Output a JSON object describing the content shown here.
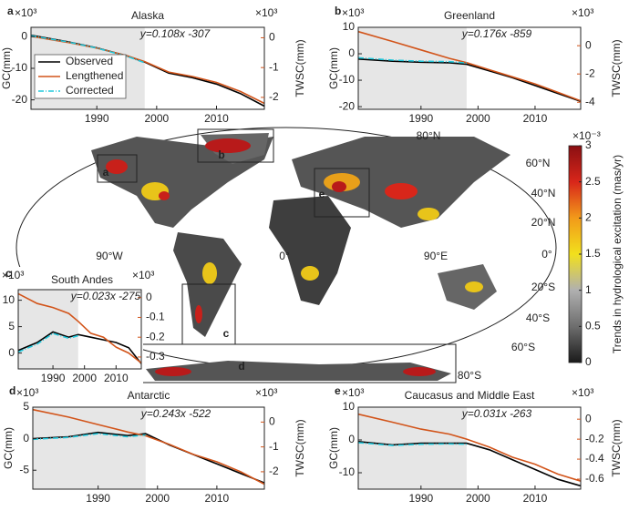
{
  "chart_data": [
    {
      "type": "line",
      "panel": "a",
      "title": "Alaska",
      "annotation": "y=0.108x -307",
      "y_label": "GC(mm)",
      "y2_label": "TWSC(mm)",
      "y_multiplier": "×10³",
      "y2_multiplier": "×10³",
      "x": [
        1979,
        1985,
        1990,
        1995,
        1998,
        2002,
        2006,
        2010,
        2014,
        2018
      ],
      "xlim": [
        1979,
        2018
      ],
      "xticks": [
        1990,
        2000,
        2010
      ],
      "ylim": [
        -23,
        3
      ],
      "yticks": [
        -20,
        -10,
        0
      ],
      "y2lim": [
        -2.4,
        0.35
      ],
      "y2ticks": [
        -2,
        -1,
        0
      ],
      "highlight_x": [
        1979,
        1998
      ],
      "legend": true,
      "legend_loc": "lower left",
      "series": [
        {
          "name": "Observed",
          "color": "#000000",
          "dash": "solid",
          "values": [
            0.5,
            -1.5,
            -3.5,
            -6,
            -8,
            -11.5,
            -13,
            -15,
            -18,
            -22
          ]
        },
        {
          "name": "Lengthened",
          "color": "#d2541a",
          "dash": "solid",
          "axis": "y2",
          "values": [
            0.05,
            -0.15,
            -0.35,
            -0.6,
            -0.8,
            -1.15,
            -1.3,
            -1.5,
            -1.8,
            -2.2
          ]
        },
        {
          "name": "Corrected",
          "color": "#22c8dc",
          "dash": "dashdot",
          "values": [
            0.3,
            -1.6,
            -3.6,
            -6.2,
            -8.2,
            null,
            null,
            null,
            null,
            null
          ]
        }
      ]
    },
    {
      "type": "line",
      "panel": "b",
      "title": "Greenland",
      "annotation": "y=0.176x -859",
      "y_label": "GC(mm)",
      "y2_label": "TWSC(mm)",
      "y_multiplier": "×10³",
      "y2_multiplier": "×10³",
      "x": [
        1979,
        1985,
        1990,
        1995,
        1998,
        2002,
        2006,
        2010,
        2014,
        2018
      ],
      "xlim": [
        1979,
        2018
      ],
      "xticks": [
        1990,
        2000,
        2010
      ],
      "ylim": [
        -21,
        10
      ],
      "yticks": [
        -20,
        -10,
        0,
        10
      ],
      "y2lim": [
        -4.5,
        1.3
      ],
      "y2ticks": [
        -4,
        -2,
        0
      ],
      "highlight_x": [
        1979,
        1998
      ],
      "legend": false,
      "series": [
        {
          "name": "Observed",
          "color": "#000000",
          "dash": "solid",
          "values": [
            -2,
            -2.8,
            -3.2,
            -3.4,
            -4,
            -6.5,
            -9,
            -12,
            -15,
            -18
          ]
        },
        {
          "name": "Lengthened",
          "color": "#d2541a",
          "dash": "solid",
          "axis": "y2",
          "values": [
            1.0,
            0.3,
            -0.3,
            -0.9,
            -1.2,
            -1.7,
            -2.2,
            -2.7,
            -3.3,
            -3.9
          ]
        },
        {
          "name": "Corrected",
          "color": "#22c8dc",
          "dash": "dashdot",
          "values": [
            -1.5,
            -2.4,
            -2.8,
            -3.0,
            -3.5,
            null,
            null,
            null,
            null,
            null
          ]
        }
      ]
    },
    {
      "type": "line",
      "panel": "c",
      "title": "South Andes",
      "annotation": "y=0.023x -275",
      "y_multiplier": "×10³",
      "y2_multiplier": "×10³",
      "x": [
        1979,
        1985,
        1990,
        1995,
        1998,
        2002,
        2006,
        2010,
        2014,
        2018
      ],
      "xlim": [
        1979,
        2018
      ],
      "xticks": [
        1990,
        2000,
        2010
      ],
      "ylim": [
        -3,
        12
      ],
      "yticks": [
        0,
        5,
        10
      ],
      "y2lim": [
        -0.36,
        0.04
      ],
      "y2ticks": [
        -0.3,
        -0.2,
        -0.1,
        0
      ],
      "highlight_x": [
        1979,
        1998
      ],
      "legend": false,
      "series": [
        {
          "name": "Observed",
          "color": "#000000",
          "dash": "solid",
          "values": [
            0.5,
            2,
            4,
            3,
            3.5,
            3,
            2.5,
            2,
            1,
            -2
          ]
        },
        {
          "name": "Lengthened",
          "color": "#d2541a",
          "dash": "solid",
          "axis": "y2",
          "values": [
            0.02,
            -0.03,
            -0.05,
            -0.08,
            -0.12,
            -0.18,
            -0.2,
            -0.25,
            -0.28,
            -0.33
          ]
        },
        {
          "name": "Corrected",
          "color": "#22c8dc",
          "dash": "dashdot",
          "values": [
            0.2,
            1.7,
            3.7,
            2.8,
            3.3,
            null,
            null,
            null,
            null,
            null
          ]
        }
      ]
    },
    {
      "type": "line",
      "panel": "d",
      "title": "Antarctic",
      "annotation": "y=0.243x -522",
      "y_label": "GC(mm)",
      "y2_label": "TWSC(mm)",
      "y_multiplier": "×10³",
      "y2_multiplier": "×10³",
      "x": [
        1979,
        1985,
        1990,
        1995,
        1998,
        2002,
        2006,
        2010,
        2014,
        2018
      ],
      "xlim": [
        1979,
        2018
      ],
      "xticks": [
        1990,
        2000,
        2010
      ],
      "ylim": [
        -8,
        5
      ],
      "yticks": [
        -5,
        0,
        5
      ],
      "y2lim": [
        -2.7,
        0.6
      ],
      "y2ticks": [
        -2,
        -1,
        0
      ],
      "highlight_x": [
        1979,
        1998
      ],
      "legend": false,
      "series": [
        {
          "name": "Observed",
          "color": "#000000",
          "dash": "solid",
          "values": [
            0,
            0.3,
            1,
            0.5,
            0.8,
            -1,
            -2.5,
            -4,
            -5.5,
            -7
          ]
        },
        {
          "name": "Lengthened",
          "color": "#d2541a",
          "dash": "solid",
          "axis": "y2",
          "values": [
            0.5,
            0.2,
            -0.1,
            -0.4,
            -0.55,
            -0.9,
            -1.3,
            -1.6,
            -2.0,
            -2.5
          ]
        },
        {
          "name": "Corrected",
          "color": "#22c8dc",
          "dash": "dashdot",
          "values": [
            -0.1,
            0.2,
            0.8,
            0.3,
            0.6,
            null,
            null,
            null,
            null,
            null
          ]
        }
      ]
    },
    {
      "type": "line",
      "panel": "e",
      "title": "Caucasus and Middle East",
      "annotation": "y=0.031x -263",
      "y_label": "GC(mm)",
      "y2_label": "TWSC(mm)",
      "y_multiplier": "×10³",
      "y2_multiplier": "×10³",
      "x": [
        1979,
        1985,
        1990,
        1995,
        1998,
        2002,
        2006,
        2010,
        2014,
        2018
      ],
      "xlim": [
        1979,
        2018
      ],
      "xticks": [
        1990,
        2000,
        2010
      ],
      "ylim": [
        -15,
        10
      ],
      "yticks": [
        -10,
        0,
        10
      ],
      "y2lim": [
        -0.7,
        0.12
      ],
      "y2ticks": [
        -0.6,
        -0.4,
        -0.2,
        0
      ],
      "highlight_x": [
        1979,
        1998
      ],
      "legend": false,
      "series": [
        {
          "name": "Observed",
          "color": "#000000",
          "dash": "solid",
          "values": [
            -0.5,
            -1.5,
            -1,
            -1,
            -1,
            -3,
            -6,
            -9,
            -12,
            -14
          ]
        },
        {
          "name": "Lengthened",
          "color": "#d2541a",
          "dash": "solid",
          "axis": "y2",
          "values": [
            0.05,
            -0.03,
            -0.1,
            -0.15,
            -0.2,
            -0.28,
            -0.38,
            -0.45,
            -0.55,
            -0.62
          ]
        },
        {
          "name": "Corrected",
          "color": "#22c8dc",
          "dash": "dashdot",
          "values": [
            -0.8,
            -1.7,
            -1.3,
            -1.2,
            -1.3,
            null,
            null,
            null,
            null,
            null
          ]
        }
      ]
    },
    {
      "type": "map",
      "colorbar_label": "Trends in hydrological excitation (mas/yr)",
      "colorbar_multiplier": "×10⁻³",
      "clim": [
        0,
        3
      ],
      "cticks": [
        0,
        0.5,
        1,
        1.5,
        2,
        2.5,
        3
      ],
      "colormap": [
        "#1a1a1a",
        "#6e6e6e",
        "#b0b0b0",
        "#f2e01c",
        "#f29a1a",
        "#d8261a",
        "#8a0f12"
      ],
      "lat_labels": [
        "80°N",
        "60°N",
        "40°N",
        "20°N",
        "0°",
        "20°S",
        "40°S",
        "60°S",
        "80°S"
      ],
      "lon_labels": [
        "90°W",
        "0°",
        "90°E"
      ],
      "region_labels": [
        "a",
        "b",
        "c",
        "d",
        "e"
      ]
    }
  ]
}
